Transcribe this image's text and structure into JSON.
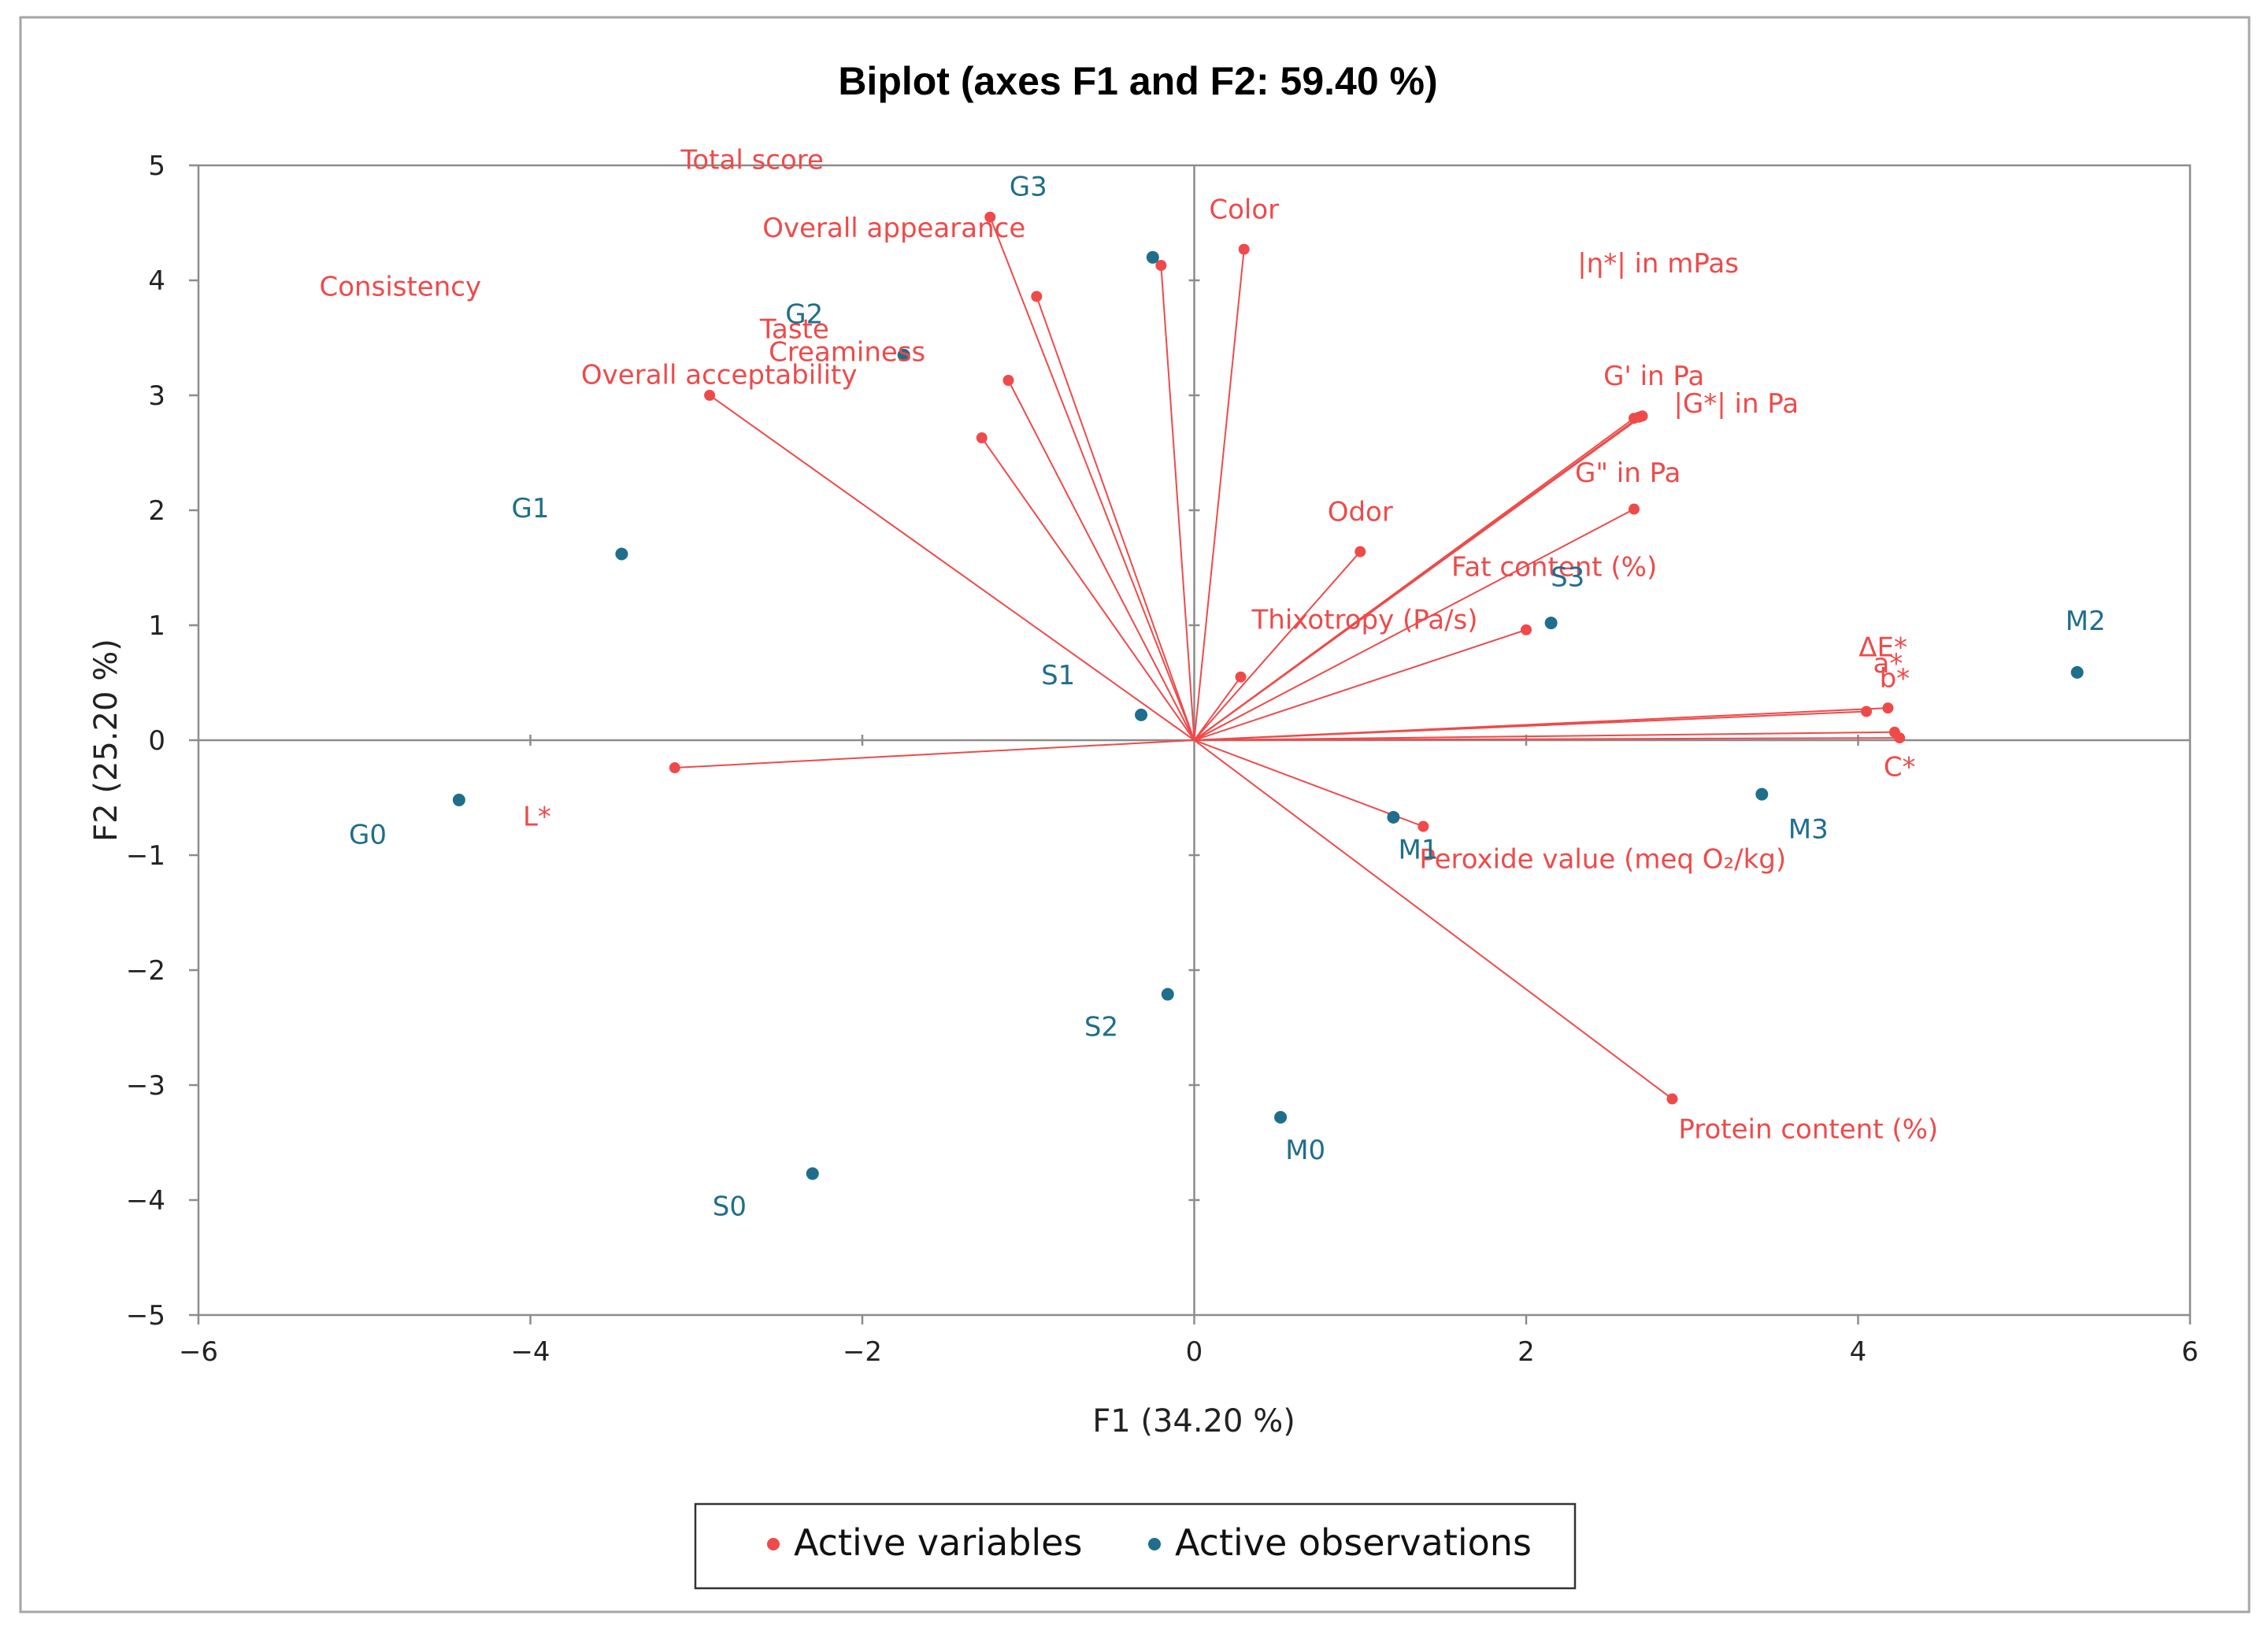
{
  "chart_data": {
    "type": "scatter",
    "title": "Biplot (axes F1 and F2: 59.40 %)",
    "xlabel": "F1 (34.20 %)",
    "ylabel": "F2 (25.20 %)",
    "xlim": [
      -6,
      6
    ],
    "ylim": [
      -5,
      5
    ],
    "x_ticks": [
      -6,
      -4,
      -2,
      0,
      2,
      4,
      6
    ],
    "y_ticks": [
      -5,
      -4,
      -3,
      -2,
      -1,
      0,
      1,
      2,
      3,
      4,
      5
    ],
    "x_tick_labels": [
      "−6",
      "−4",
      "−2",
      "0",
      "2",
      "4",
      "6"
    ],
    "y_tick_labels": [
      "−5",
      "−4",
      "−3",
      "−2",
      "−1",
      "0",
      "1",
      "2",
      "3",
      "4",
      "5"
    ],
    "colors": {
      "variables": "#ee4a4a",
      "observations": "#1f6e8c"
    },
    "legend": {
      "placement": "bottom",
      "entries": [
        {
          "name": "Active variables",
          "color": "#ee4a4a"
        },
        {
          "name": "Active observations",
          "color": "#1f6e8c"
        }
      ]
    },
    "variables": [
      {
        "name": "Total score",
        "x": -1.23,
        "y": 4.55
      },
      {
        "name": "Overall appearance",
        "x": -0.95,
        "y": 3.86
      },
      {
        "name": "Taste",
        "x": -1.12,
        "y": 3.13
      },
      {
        "name": "Overall acceptability",
        "x": -1.28,
        "y": 2.63
      },
      {
        "name": "Consistency",
        "x": -2.92,
        "y": 3.0
      },
      {
        "name": "Creaminess",
        "x": -0.2,
        "y": 4.13
      },
      {
        "name": "Color",
        "x": 0.3,
        "y": 4.27
      },
      {
        "name": "|η*| in mPas",
        "x": 2.65,
        "y": 2.8
      },
      {
        "name": "G' in Pa",
        "x": 2.7,
        "y": 2.82
      },
      {
        "name": "|G*| in Pa",
        "x": 2.68,
        "y": 2.81
      },
      {
        "name": "G\" in Pa",
        "x": 2.65,
        "y": 2.01
      },
      {
        "name": "Odor",
        "x": 1.0,
        "y": 1.64
      },
      {
        "name": "Fat content (%)",
        "x": 2.0,
        "y": 0.96
      },
      {
        "name": "Thixotropy (Pa/s)",
        "x": 0.28,
        "y": 0.55
      },
      {
        "name": "ΔE*",
        "x": 4.05,
        "y": 0.25
      },
      {
        "name": "a*",
        "x": 4.18,
        "y": 0.28
      },
      {
        "name": "b*",
        "x": 4.22,
        "y": 0.07
      },
      {
        "name": "C*",
        "x": 4.25,
        "y": 0.02
      },
      {
        "name": "Peroxide value (meq O₂/kg)",
        "x": 1.38,
        "y": -0.75
      },
      {
        "name": "Protein content (%)",
        "x": 2.88,
        "y": -3.12
      },
      {
        "name": "L*",
        "x": -3.13,
        "y": -0.24
      }
    ],
    "observations": [
      {
        "name": "G3",
        "x": -0.25,
        "y": 4.2
      },
      {
        "name": "G2",
        "x": -1.75,
        "y": 3.35
      },
      {
        "name": "G1",
        "x": -3.45,
        "y": 1.62
      },
      {
        "name": "G0",
        "x": -4.43,
        "y": -0.52
      },
      {
        "name": "S1",
        "x": -0.32,
        "y": 0.22
      },
      {
        "name": "S2",
        "x": -0.16,
        "y": -2.21
      },
      {
        "name": "S0",
        "x": -2.3,
        "y": -3.77
      },
      {
        "name": "S3",
        "x": 2.15,
        "y": 1.02
      },
      {
        "name": "M0",
        "x": 0.52,
        "y": -3.28
      },
      {
        "name": "M1",
        "x": 1.2,
        "y": -0.67
      },
      {
        "name": "M2",
        "x": 5.32,
        "y": 0.59
      },
      {
        "name": "M3",
        "x": 3.42,
        "y": -0.47
      }
    ]
  }
}
